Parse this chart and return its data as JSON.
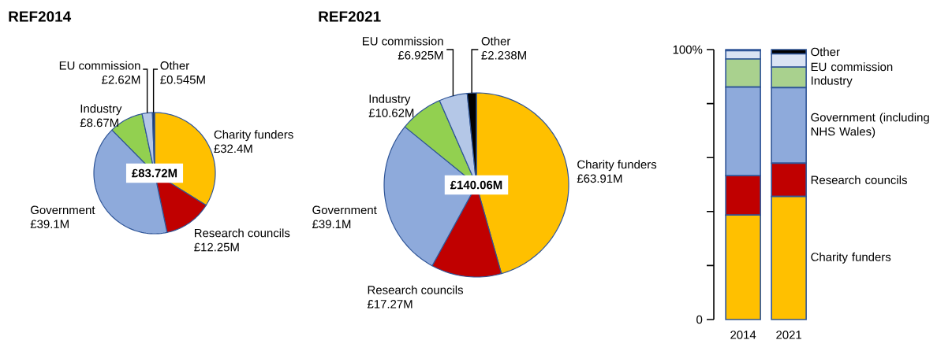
{
  "chart_data": [
    {
      "type": "pie",
      "title": "REF2014",
      "categories": [
        "Charity funders",
        "Research councils",
        "Government",
        "Industry",
        "EU commission",
        "Other"
      ],
      "values": [
        32.4,
        12.25,
        39.1,
        8.67,
        2.62,
        0.545
      ],
      "value_labels": [
        "£32.4M",
        "£12.25M",
        "£39.1M",
        "£8.67M",
        "£2.62M",
        "£0.545M"
      ],
      "colors": [
        "#ffc000",
        "#c00000",
        "#8eaadb",
        "#92d050",
        "#b4c7e7",
        "#1f3864"
      ],
      "annotations": [
        "£83.72M"
      ]
    },
    {
      "type": "pie",
      "title": "REF2021",
      "categories": [
        "Charity funders",
        "Research councils",
        "Government",
        "Industry",
        "EU commission",
        "Other"
      ],
      "values": [
        63.91,
        17.27,
        39.1,
        10.62,
        6.925,
        2.238
      ],
      "value_labels": [
        "£63.91M",
        "£17.27M",
        "£39.1M",
        "£10.62M",
        "£6.925M",
        "£2.238M"
      ],
      "colors": [
        "#ffc000",
        "#c00000",
        "#8eaadb",
        "#92d050",
        "#b4c7e7",
        "#000000"
      ],
      "annotations": [
        "£140.06M"
      ]
    },
    {
      "type": "bar",
      "stacked": true,
      "categories": [
        "2014",
        "2021"
      ],
      "ylim": [
        0,
        100
      ],
      "yticks": [
        {
          "value": 0,
          "label": "0"
        },
        {
          "value": 20,
          "label": null
        },
        {
          "value": 40,
          "label": null
        },
        {
          "value": 60,
          "label": null
        },
        {
          "value": 80,
          "label": null
        },
        {
          "value": 100,
          "label": "100%"
        }
      ],
      "series": [
        {
          "name": "Charity funders",
          "color": "#ffc000",
          "values": [
            38.7,
            45.6
          ]
        },
        {
          "name": "Research councils",
          "color": "#c00000",
          "values": [
            14.6,
            12.3
          ]
        },
        {
          "name": "Government (including NHS Wales)",
          "color": "#8eaadb",
          "values": [
            32.8,
            28.0
          ]
        },
        {
          "name": "Industry",
          "color": "#a9d18e",
          "values": [
            10.4,
            7.6
          ]
        },
        {
          "name": "EU commission",
          "color": "#dae3f3",
          "values": [
            3.1,
            4.9
          ]
        },
        {
          "name": "Other",
          "color": "#000000",
          "values": [
            0.4,
            1.6
          ]
        }
      ]
    }
  ]
}
